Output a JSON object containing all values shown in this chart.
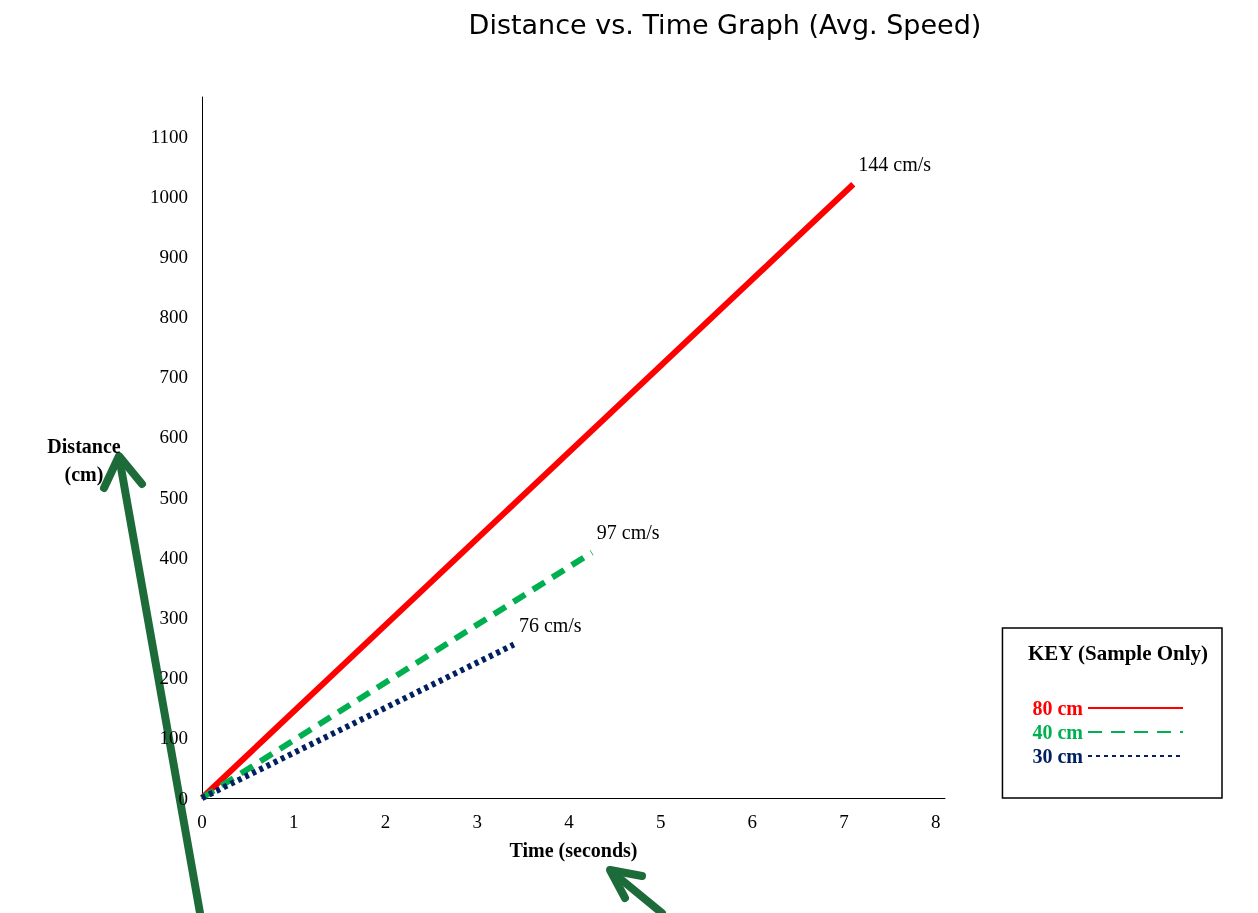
{
  "chart_data": {
    "type": "line",
    "title": "Distance vs. Time Graph (Avg. Speed)",
    "xlabel": "Time (seconds)",
    "ylabel": "Distance\n(cm)",
    "legend_title": "KEY (Sample Only)",
    "series": [
      {
        "name": "80 cm",
        "color": "#ff0000",
        "line_style": "solid",
        "x": [
          0,
          7.1
        ],
        "values": [
          0,
          1020
        ]
      },
      {
        "name": "40 cm",
        "color": "#00b050",
        "line_style": "dashed",
        "x": [
          0,
          4.25
        ],
        "values": [
          0,
          408
        ]
      },
      {
        "name": "30 cm",
        "color": "#002060",
        "line_style": "dotted",
        "x": [
          0,
          3.4
        ],
        "values": [
          0,
          255
        ]
      }
    ],
    "annotations": [
      {
        "text": "144 cm/s",
        "x": 7.1,
        "y": 1020
      },
      {
        "text": "97 cm/s",
        "x": 4.25,
        "y": 408
      },
      {
        "text": "76 cm/s",
        "x": 3.4,
        "y": 255
      }
    ],
    "xlim": [
      0,
      8.1
    ],
    "xticks": [
      0,
      1,
      2,
      3,
      4,
      5,
      6,
      7,
      8
    ],
    "ylim": [
      0,
      1165
    ],
    "yticks": [
      0,
      100,
      200,
      300,
      400,
      500,
      600,
      700,
      800,
      900,
      {
        "value": 1000,
        "label": "1000"
      },
      {
        "value": 1100,
        "label": "1100"
      }
    ],
    "grid": false,
    "legend": "bottom right",
    "marker": "none"
  }
}
